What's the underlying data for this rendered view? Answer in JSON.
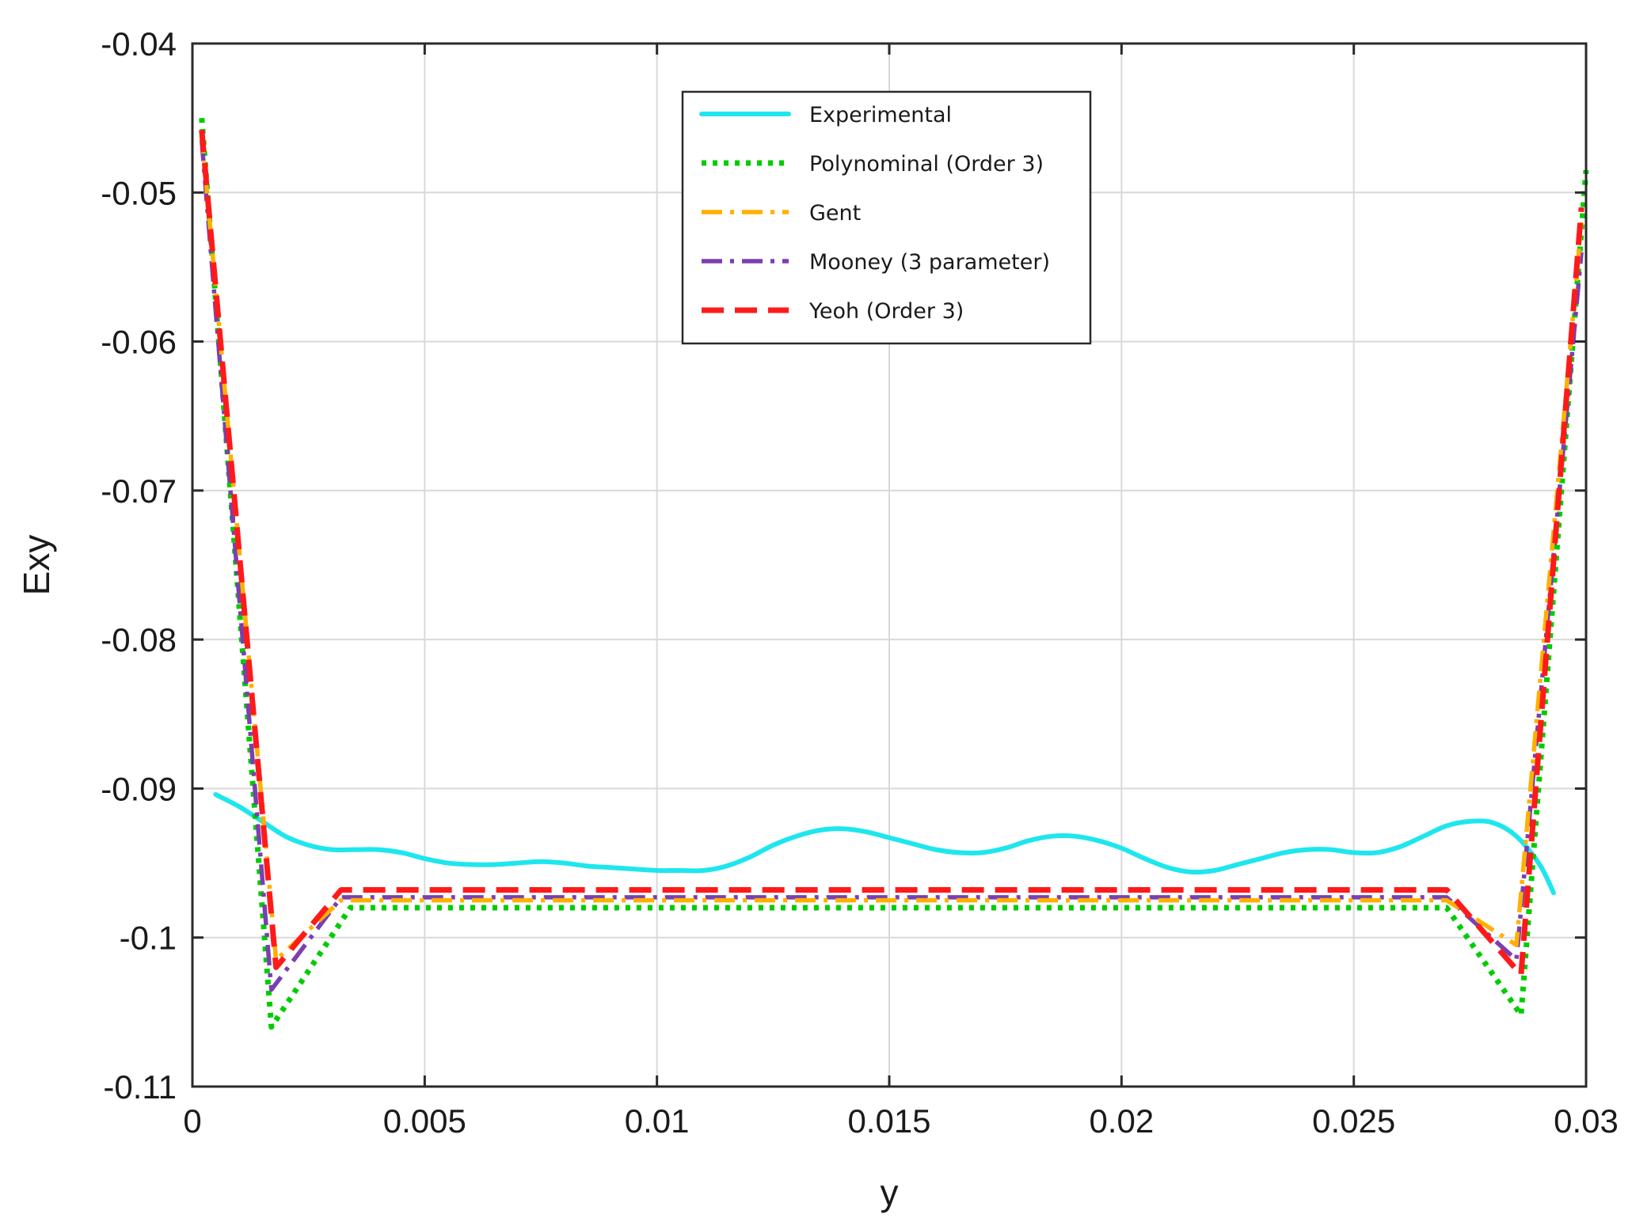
{
  "chart_data": {
    "type": "line",
    "xlabel": "y",
    "ylabel": "Exy",
    "xlim": [
      0,
      0.03
    ],
    "ylim": [
      -0.11,
      -0.04
    ],
    "grid": true,
    "legend_position": "top-center",
    "x_ticks": [
      {
        "value": 0,
        "label": "0"
      },
      {
        "value": 0.005,
        "label": "0.005"
      },
      {
        "value": 0.01,
        "label": "0.01"
      },
      {
        "value": 0.015,
        "label": "0.015"
      },
      {
        "value": 0.02,
        "label": "0.02"
      },
      {
        "value": 0.025,
        "label": "0.025"
      },
      {
        "value": 0.03,
        "label": "0.03"
      }
    ],
    "y_ticks": [
      {
        "value": -0.04,
        "label": "-0.04"
      },
      {
        "value": -0.05,
        "label": "-0.05"
      },
      {
        "value": -0.06,
        "label": "-0.06"
      },
      {
        "value": -0.07,
        "label": "-0.07"
      },
      {
        "value": -0.08,
        "label": "-0.08"
      },
      {
        "value": -0.09,
        "label": "-0.09"
      },
      {
        "value": -0.1,
        "label": "-0.1"
      },
      {
        "value": -0.11,
        "label": "-0.11"
      }
    ],
    "series": [
      {
        "name": "Experimental",
        "color": "#1ee6ee",
        "style": "solid",
        "smooth": true,
        "x": [
          0.0005,
          0.001,
          0.0015,
          0.002,
          0.0025,
          0.003,
          0.0035,
          0.004,
          0.0045,
          0.005,
          0.0055,
          0.006,
          0.0065,
          0.007,
          0.0075,
          0.008,
          0.0085,
          0.009,
          0.0095,
          0.01,
          0.0105,
          0.011,
          0.0115,
          0.012,
          0.0125,
          0.013,
          0.0135,
          0.014,
          0.0145,
          0.015,
          0.0155,
          0.016,
          0.0165,
          0.017,
          0.0175,
          0.018,
          0.0185,
          0.019,
          0.0195,
          0.02,
          0.0205,
          0.021,
          0.0215,
          0.022,
          0.0225,
          0.023,
          0.0235,
          0.024,
          0.0245,
          0.025,
          0.0255,
          0.026,
          0.0265,
          0.027,
          0.0275,
          0.028,
          0.0285,
          0.029,
          0.0293
        ],
        "y": [
          -0.0904,
          -0.0912,
          -0.0922,
          -0.0932,
          -0.0938,
          -0.0941,
          -0.0941,
          -0.0941,
          -0.0943,
          -0.0947,
          -0.095,
          -0.0951,
          -0.0951,
          -0.095,
          -0.0949,
          -0.095,
          -0.0952,
          -0.0953,
          -0.0954,
          -0.0955,
          -0.0955,
          -0.0955,
          -0.0952,
          -0.0946,
          -0.0938,
          -0.0932,
          -0.0928,
          -0.0927,
          -0.0929,
          -0.0933,
          -0.0937,
          -0.0941,
          -0.0943,
          -0.0943,
          -0.094,
          -0.0935,
          -0.0932,
          -0.0932,
          -0.0935,
          -0.094,
          -0.0947,
          -0.0953,
          -0.0956,
          -0.0955,
          -0.0951,
          -0.0947,
          -0.0943,
          -0.0941,
          -0.0941,
          -0.0943,
          -0.0943,
          -0.0939,
          -0.0932,
          -0.0925,
          -0.0922,
          -0.0923,
          -0.0932,
          -0.0951,
          -0.097
        ]
      },
      {
        "name": "Polynominal (Order 3)",
        "color": "#00cc00",
        "style": "dotted",
        "x": [
          0.0002,
          0.0017,
          0.0034,
          0.027,
          0.0286,
          0.03
        ],
        "y": [
          -0.045,
          -0.106,
          -0.098,
          -0.098,
          -0.1052,
          -0.0485
        ]
      },
      {
        "name": "Gent",
        "color": "#ffb000",
        "style": "dashdot",
        "x": [
          0.0002,
          0.0018,
          0.0032,
          0.027,
          0.0285,
          0.0299
        ],
        "y": [
          -0.046,
          -0.1015,
          -0.0975,
          -0.0975,
          -0.1005,
          -0.052
        ]
      },
      {
        "name": "Mooney (3 parameter)",
        "color": "#7a3fb0",
        "style": "dashdot",
        "x": [
          0.0002,
          0.0017,
          0.0032,
          0.027,
          0.0285,
          0.0299
        ],
        "y": [
          -0.0465,
          -0.1035,
          -0.0973,
          -0.0973,
          -0.1015,
          -0.054
        ]
      },
      {
        "name": "Yeoh (Order 3)",
        "color": "#ff1a1a",
        "style": "dashed",
        "x": [
          0.0002,
          0.0018,
          0.0032,
          0.027,
          0.0286,
          0.0299
        ],
        "y": [
          -0.0458,
          -0.102,
          -0.0968,
          -0.0968,
          -0.1025,
          -0.051
        ]
      }
    ]
  }
}
